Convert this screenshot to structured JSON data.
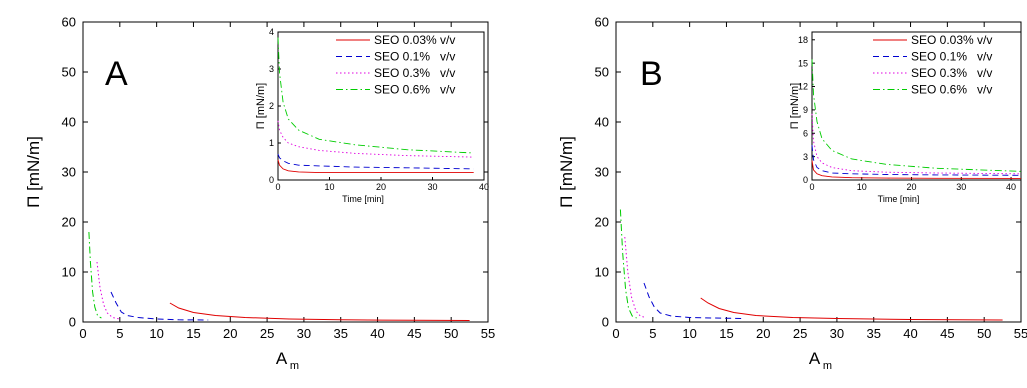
{
  "colors": {
    "axis": "#000000",
    "series": [
      "#e00000",
      "#0000d0",
      "#e000e0",
      "#00cc00"
    ],
    "series_dash": [
      "solid",
      "dash",
      "dot",
      "dashdot"
    ]
  },
  "chart_data": [
    {
      "panel": "A",
      "type": "line",
      "xlabel": "A",
      "xlabel_sub": "m",
      "ylabel": "Π [mN/m]",
      "xlim": [
        0,
        55
      ],
      "ylim": [
        0,
        60
      ],
      "xticks": [
        0,
        5,
        10,
        15,
        20,
        25,
        30,
        35,
        40,
        45,
        50,
        55
      ],
      "yticks": [
        0,
        10,
        20,
        30,
        40,
        50,
        60
      ],
      "grid": false,
      "legend_placement": "none",
      "series": [
        {
          "name": "SEO 0.03% v/v",
          "x": [
            11.8,
            13,
            15,
            18,
            22,
            28,
            35,
            45,
            52.5
          ],
          "y": [
            3.8,
            2.8,
            1.9,
            1.3,
            0.9,
            0.6,
            0.45,
            0.35,
            0.3
          ]
        },
        {
          "name": "SEO 0.1% v/v",
          "x": [
            3.8,
            4.5,
            5.2,
            6,
            7.5,
            10,
            13,
            17
          ],
          "y": [
            6.0,
            3.8,
            2.0,
            1.3,
            0.9,
            0.6,
            0.45,
            0.4
          ]
        },
        {
          "name": "SEO 0.3% v/v",
          "x": [
            1.9,
            2.3,
            2.8,
            3.3,
            4.0,
            5.0
          ],
          "y": [
            12.0,
            7.0,
            3.5,
            1.8,
            0.9,
            0.6
          ]
        },
        {
          "name": "SEO 0.6% v/v",
          "x": [
            0.8,
            1.0,
            1.3,
            1.6,
            2.0,
            2.5
          ],
          "y": [
            18.0,
            12.0,
            6.0,
            3.0,
            1.2,
            0.8
          ]
        }
      ],
      "inset": {
        "type": "line",
        "xlabel": "Time [min]",
        "ylabel": "Π [mN/m]",
        "xlim": [
          0,
          40
        ],
        "ylim": [
          0,
          4
        ],
        "xticks": [
          0,
          10,
          20,
          30,
          40
        ],
        "yticks": [
          0,
          1,
          2,
          3,
          4
        ],
        "legend_placement": "top-right",
        "legend": [
          "SEO 0.03% v/v",
          "SEO 0.1%   v/v",
          "SEO 0.3%   v/v",
          "SEO 0.6%   v/v"
        ],
        "series": [
          {
            "name": "SEO 0.03% v/v",
            "x": [
              0,
              0.3,
              1,
              2,
              4,
              8,
              15,
              25,
              38
            ],
            "y": [
              0.55,
              0.4,
              0.3,
              0.25,
              0.22,
              0.2,
              0.2,
              0.2,
              0.2
            ]
          },
          {
            "name": "SEO 0.1% v/v",
            "x": [
              0,
              0.3,
              1,
              2,
              4,
              8,
              15,
              25,
              38
            ],
            "y": [
              0.7,
              0.6,
              0.52,
              0.45,
              0.4,
              0.38,
              0.35,
              0.33,
              0.3
            ]
          },
          {
            "name": "SEO 0.3% v/v",
            "x": [
              0,
              0.3,
              1,
              2,
              4,
              8,
              15,
              25,
              38
            ],
            "y": [
              1.6,
              1.35,
              1.15,
              1.0,
              0.9,
              0.8,
              0.72,
              0.66,
              0.62
            ]
          },
          {
            "name": "SEO 0.6% v/v",
            "x": [
              0,
              0.3,
              1,
              2,
              4,
              8,
              15,
              25,
              38
            ],
            "y": [
              3.85,
              2.9,
              2.1,
              1.65,
              1.35,
              1.1,
              0.95,
              0.82,
              0.73
            ]
          }
        ]
      }
    },
    {
      "panel": "B",
      "type": "line",
      "xlabel": "A",
      "xlabel_sub": "m",
      "ylabel": "Π [mN/m]",
      "xlim": [
        0,
        55
      ],
      "ylim": [
        0,
        60
      ],
      "xticks": [
        0,
        5,
        10,
        15,
        20,
        25,
        30,
        35,
        40,
        45,
        50,
        55
      ],
      "yticks": [
        0,
        10,
        20,
        30,
        40,
        50,
        60
      ],
      "grid": false,
      "legend_placement": "none",
      "series": [
        {
          "name": "SEO 0.03% v/v",
          "x": [
            11.5,
            12.5,
            14,
            16,
            19,
            24,
            30,
            40,
            52.5
          ],
          "y": [
            4.8,
            3.8,
            2.7,
            1.9,
            1.3,
            0.9,
            0.7,
            0.5,
            0.4
          ]
        },
        {
          "name": "SEO 0.1% v/v",
          "x": [
            3.8,
            4.5,
            5.2,
            6,
            7.5,
            10,
            13,
            17.5
          ],
          "y": [
            7.8,
            5.0,
            3.0,
            1.8,
            1.2,
            0.9,
            0.8,
            0.7
          ]
        },
        {
          "name": "SEO 0.3% v/v",
          "x": [
            1.2,
            1.6,
            2.1,
            2.7,
            3.3,
            4.0
          ],
          "y": [
            17.0,
            10.0,
            5.0,
            2.2,
            1.2,
            0.9
          ]
        },
        {
          "name": "SEO 0.6% v/v",
          "x": [
            0.6,
            0.9,
            1.3,
            1.7,
            2.2,
            2.8
          ],
          "y": [
            22.5,
            14.0,
            6.5,
            2.8,
            1.2,
            0.8
          ]
        }
      ],
      "inset": {
        "type": "line",
        "xlabel": "Time [min]",
        "ylabel": "Π [mN/m]",
        "xlim": [
          0,
          42
        ],
        "ylim": [
          0,
          19
        ],
        "xticks": [
          0,
          10,
          20,
          30,
          40
        ],
        "yticks": [
          0,
          3,
          6,
          9,
          12,
          15,
          18
        ],
        "legend_placement": "top-right",
        "legend": [
          "SEO 0.03% v/v",
          "SEO 0.1%   v/v",
          "SEO 0.3%   v/v",
          "SEO 0.6%   v/v"
        ],
        "series": [
          {
            "name": "SEO 0.03% v/v",
            "x": [
              0,
              0.3,
              1,
              2,
              4,
              8,
              15,
              25,
              42
            ],
            "y": [
              2.5,
              1.3,
              0.8,
              0.55,
              0.4,
              0.3,
              0.25,
              0.22,
              0.2
            ]
          },
          {
            "name": "SEO 0.1% v/v",
            "x": [
              0,
              0.3,
              1,
              2,
              4,
              8,
              15,
              25,
              42
            ],
            "y": [
              4.5,
              2.6,
              1.6,
              1.2,
              0.9,
              0.8,
              0.7,
              0.65,
              0.6
            ]
          },
          {
            "name": "SEO 0.3% v/v",
            "x": [
              0,
              0.3,
              1,
              2,
              4,
              8,
              15,
              25,
              42
            ],
            "y": [
              8.5,
              5.0,
              3.0,
              2.2,
              1.6,
              1.2,
              1.0,
              0.9,
              0.8
            ]
          },
          {
            "name": "SEO 0.6% v/v",
            "x": [
              0,
              0.3,
              1,
              2,
              4,
              8,
              15,
              25,
              42
            ],
            "y": [
              15.5,
              11.0,
              7.5,
              5.3,
              3.8,
              2.7,
              2.0,
              1.5,
              1.1
            ]
          }
        ]
      }
    }
  ]
}
